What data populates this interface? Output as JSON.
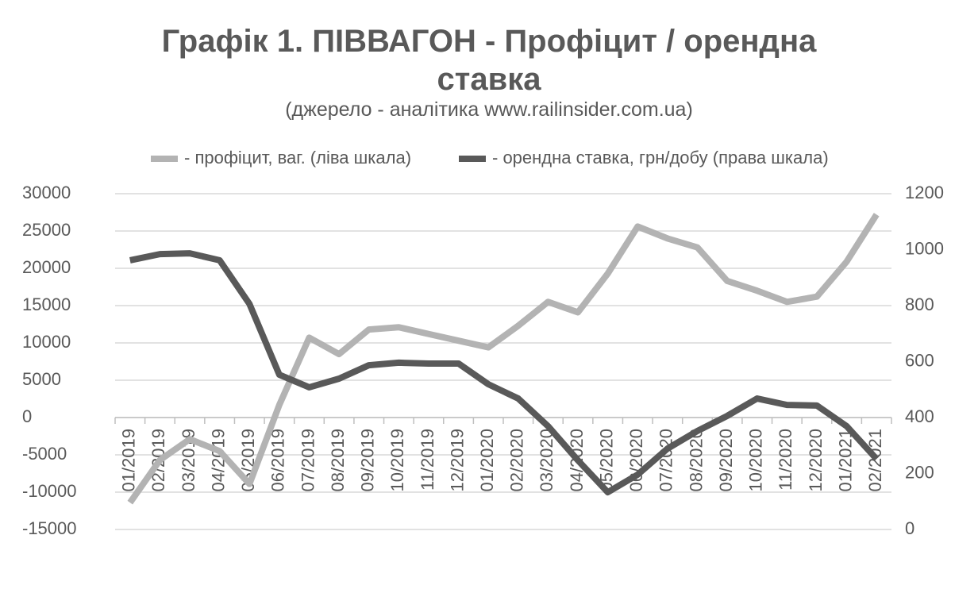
{
  "chart_data": {
    "type": "line",
    "title": "Графік 1. ПІВВАГОН - Профіцит / орендна ставка",
    "subtitle": "(джерело - аналітика www.railinsider.com.ua)",
    "categories": [
      "01/2019",
      "02/2019",
      "03/2019",
      "04/2019",
      "05/2019",
      "06/2019",
      "07/2019",
      "08/2019",
      "09/2019",
      "10/2019",
      "11/2019",
      "12/2019",
      "01/2020",
      "02/2020",
      "03/2020",
      "04/2020",
      "05/2020",
      "06/2020",
      "07/2020",
      "08/2020",
      "09/2020",
      "10/2020",
      "11/2020",
      "12/2020",
      "01/2021",
      "02/2021"
    ],
    "series": [
      {
        "name": "- профіцит, ваг. (ліва шкала)",
        "color": "#b3b3b3",
        "axis": "y",
        "values": [
          -11400,
          -5700,
          -2900,
          -4500,
          -8900,
          1700,
          10700,
          8500,
          11800,
          12100,
          11200,
          10300,
          9400,
          12300,
          15500,
          14100,
          19300,
          25600,
          24000,
          22800,
          18300,
          17000,
          15500,
          16200,
          20900,
          27200
        ]
      },
      {
        "name": "- орендна ставка, грн/добу (права шкала)",
        "color": "#595959",
        "axis": "y2",
        "values": [
          962,
          984,
          987,
          962,
          806,
          553,
          508,
          539,
          587,
          596,
          593,
          593,
          519,
          468,
          369,
          247,
          133,
          196,
          289,
          352,
          406,
          468,
          445,
          443,
          369,
          252
        ]
      }
    ],
    "ylim": [
      -15000,
      30000
    ],
    "yticks": [
      -15000,
      -10000,
      -5000,
      0,
      5000,
      10000,
      15000,
      20000,
      25000,
      30000
    ],
    "y2lim": [
      0,
      1200
    ],
    "y2ticks": [
      0,
      200,
      400,
      600,
      800,
      1000,
      1200
    ],
    "grid": true,
    "legend": "top"
  }
}
